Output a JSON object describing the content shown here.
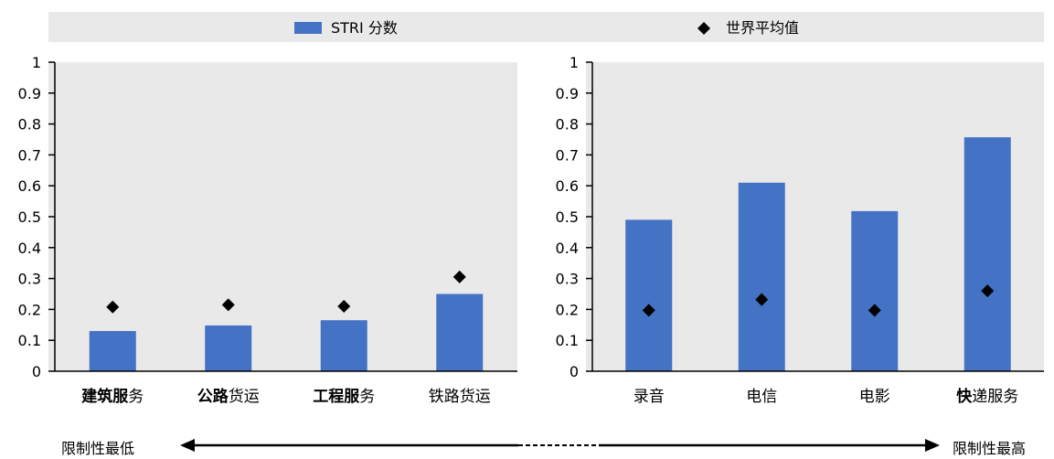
{
  "legend": {
    "bar_label": "STRI 分数",
    "marker_label": "世界平均值"
  },
  "bottom_scale": {
    "left_label": "限制性最低",
    "right_label": "限制性最高"
  },
  "colors": {
    "bar": "#4472c4",
    "marker": "#000000",
    "panel_bg": "#e9e9e9"
  },
  "chart_data": [
    {
      "type": "bar",
      "ylim": [
        0,
        1
      ],
      "yticks": [
        "0",
        "0.1",
        "0.2",
        "0.3",
        "0.4",
        "0.5",
        "0.6",
        "0.7",
        "0.8",
        "0.9",
        "1"
      ],
      "grid": true,
      "categories": [
        {
          "bold": "建筑服",
          "rest": "务"
        },
        {
          "bold": "公路",
          "rest": "货运"
        },
        {
          "bold": "工程服",
          "rest": "务"
        },
        {
          "bold": "",
          "rest": "铁路货运"
        }
      ],
      "series": [
        {
          "name": "STRI 分数",
          "kind": "bar",
          "values": [
            0.13,
            0.148,
            0.165,
            0.25
          ]
        },
        {
          "name": "世界平均值",
          "kind": "marker",
          "values": [
            0.208,
            0.215,
            0.21,
            0.305
          ]
        }
      ]
    },
    {
      "type": "bar",
      "ylim": [
        0,
        1
      ],
      "yticks": [
        "0",
        "0.1",
        "0.2",
        "0.3",
        "0.4",
        "0.5",
        "0.6",
        "0.7",
        "0.8",
        "0.9",
        "1"
      ],
      "grid": true,
      "categories": [
        {
          "bold": "",
          "rest": "录音"
        },
        {
          "bold": "",
          "rest": "电信"
        },
        {
          "bold": "",
          "rest": "电影"
        },
        {
          "bold": "快",
          "rest": "递服务"
        }
      ],
      "series": [
        {
          "name": "STRI 分数",
          "kind": "bar",
          "values": [
            0.49,
            0.61,
            0.518,
            0.757
          ]
        },
        {
          "name": "世界平均值",
          "kind": "marker",
          "values": [
            0.197,
            0.232,
            0.197,
            0.26
          ]
        }
      ]
    }
  ]
}
